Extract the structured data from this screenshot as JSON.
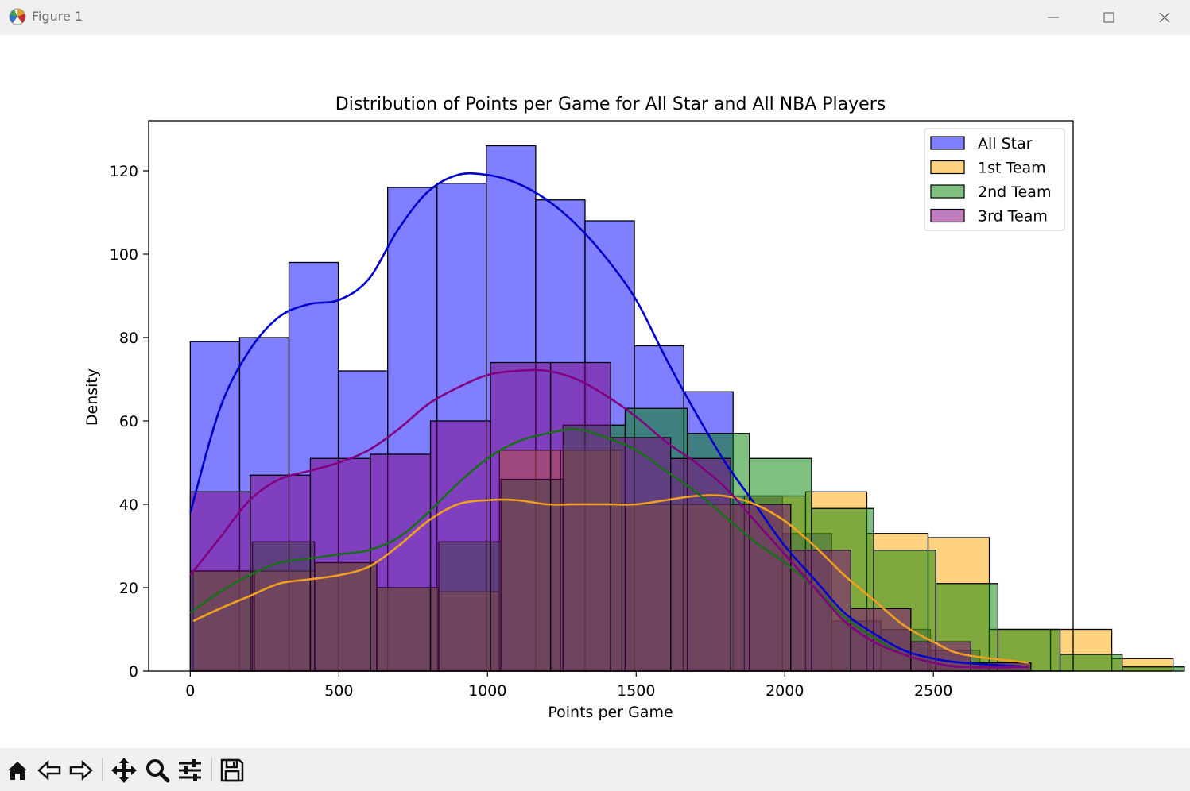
{
  "window": {
    "title": "Figure 1",
    "icons": [
      "matplotlib-icon",
      "minimize-icon",
      "maximize-icon",
      "close-icon"
    ]
  },
  "toolbar": {
    "tools": [
      "home-icon",
      "back-icon",
      "forward-icon",
      "pan-icon",
      "zoom-icon",
      "configure-subplots-icon",
      "save-icon"
    ]
  },
  "chart_data": {
    "type": "bar",
    "title": "Distribution of Points per Game for All Star and All NBA Players",
    "xlabel": "Points per Game",
    "ylabel": "Density",
    "xlim": [
      -140,
      2970
    ],
    "ylim": [
      0,
      132
    ],
    "xticks": [
      0,
      500,
      1000,
      1500,
      2000,
      2500
    ],
    "yticks": [
      0,
      20,
      40,
      60,
      80,
      100,
      120
    ],
    "legend_position": "top-right",
    "series": [
      {
        "name": "All Star",
        "color": "#0000ff",
        "kde_color": "#0000cc",
        "bin_start": 0,
        "bin_width": 166,
        "counts": [
          79,
          80,
          98,
          72,
          116,
          117,
          126,
          113,
          108,
          78,
          67,
          42,
          33,
          12,
          10,
          5,
          2
        ],
        "kde": [
          [
            0,
            38
          ],
          [
            100,
            63
          ],
          [
            200,
            77
          ],
          [
            300,
            85
          ],
          [
            400,
            88
          ],
          [
            500,
            89
          ],
          [
            600,
            94
          ],
          [
            700,
            106
          ],
          [
            800,
            115
          ],
          [
            900,
            119
          ],
          [
            1000,
            119
          ],
          [
            1100,
            117
          ],
          [
            1200,
            113
          ],
          [
            1300,
            107
          ],
          [
            1400,
            99
          ],
          [
            1500,
            89
          ],
          [
            1600,
            75
          ],
          [
            1700,
            62
          ],
          [
            1800,
            50
          ],
          [
            1900,
            40
          ],
          [
            2000,
            30
          ],
          [
            2100,
            22
          ],
          [
            2200,
            14
          ],
          [
            2300,
            9
          ],
          [
            2400,
            5
          ],
          [
            2500,
            3
          ],
          [
            2600,
            2
          ],
          [
            2820,
            1
          ]
        ]
      },
      {
        "name": "1st Team",
        "color": "#ffa500",
        "kde_color": "#f0a020",
        "bin_start": 10,
        "bin_width": 206,
        "counts": [
          24,
          24,
          26,
          20,
          19,
          53,
          53,
          40,
          40,
          42,
          43,
          33,
          32,
          10,
          10,
          3
        ],
        "kde": [
          [
            10,
            12
          ],
          [
            100,
            15
          ],
          [
            200,
            18
          ],
          [
            300,
            21
          ],
          [
            400,
            22
          ],
          [
            500,
            23
          ],
          [
            600,
            25
          ],
          [
            700,
            30
          ],
          [
            800,
            36
          ],
          [
            900,
            40
          ],
          [
            1000,
            41
          ],
          [
            1100,
            41
          ],
          [
            1200,
            40
          ],
          [
            1300,
            40
          ],
          [
            1400,
            40
          ],
          [
            1500,
            40
          ],
          [
            1600,
            41
          ],
          [
            1700,
            42
          ],
          [
            1800,
            42
          ],
          [
            1900,
            40
          ],
          [
            2000,
            36
          ],
          [
            2100,
            30
          ],
          [
            2200,
            23
          ],
          [
            2300,
            17
          ],
          [
            2400,
            11
          ],
          [
            2500,
            7
          ],
          [
            2600,
            4
          ],
          [
            2820,
            2
          ]
        ]
      },
      {
        "name": "2nd Team",
        "color": "#008000",
        "kde_color": "#1a6e1a",
        "bin_start": 0,
        "bin_width": 209,
        "counts": [
          24,
          31,
          26,
          20,
          31,
          46,
          59,
          63,
          57,
          51,
          39,
          29,
          21,
          10,
          4,
          1
        ],
        "kde": [
          [
            0,
            14
          ],
          [
            100,
            19
          ],
          [
            200,
            23
          ],
          [
            300,
            26
          ],
          [
            400,
            27
          ],
          [
            500,
            28
          ],
          [
            600,
            29
          ],
          [
            700,
            32
          ],
          [
            800,
            38
          ],
          [
            900,
            45
          ],
          [
            1000,
            51
          ],
          [
            1100,
            55
          ],
          [
            1200,
            57
          ],
          [
            1300,
            58
          ],
          [
            1400,
            56
          ],
          [
            1500,
            53
          ],
          [
            1600,
            48
          ],
          [
            1700,
            43
          ],
          [
            1800,
            37
          ],
          [
            1900,
            31
          ],
          [
            2000,
            26
          ],
          [
            2100,
            20
          ],
          [
            2200,
            13
          ],
          [
            2300,
            8
          ],
          [
            2400,
            4
          ],
          [
            2500,
            2
          ],
          [
            2600,
            1
          ],
          [
            2820,
            1
          ]
        ]
      },
      {
        "name": "3rd Team",
        "color": "#800080",
        "kde_color": "#800080",
        "bin_start": 0,
        "bin_width": 202,
        "counts": [
          43,
          47,
          51,
          52,
          60,
          74,
          74,
          56,
          51,
          40,
          29,
          15,
          7,
          2
        ],
        "kde": [
          [
            0,
            23
          ],
          [
            100,
            32
          ],
          [
            200,
            41
          ],
          [
            300,
            46
          ],
          [
            400,
            48
          ],
          [
            500,
            50
          ],
          [
            600,
            53
          ],
          [
            700,
            58
          ],
          [
            800,
            64
          ],
          [
            900,
            68
          ],
          [
            1000,
            71
          ],
          [
            1100,
            72
          ],
          [
            1200,
            72
          ],
          [
            1300,
            70
          ],
          [
            1400,
            66
          ],
          [
            1500,
            61
          ],
          [
            1600,
            55
          ],
          [
            1700,
            50
          ],
          [
            1800,
            44
          ],
          [
            1900,
            36
          ],
          [
            2000,
            28
          ],
          [
            2100,
            20
          ],
          [
            2200,
            12
          ],
          [
            2300,
            7
          ],
          [
            2400,
            4
          ],
          [
            2500,
            2
          ],
          [
            2600,
            1
          ],
          [
            2820,
            1
          ]
        ]
      }
    ]
  }
}
